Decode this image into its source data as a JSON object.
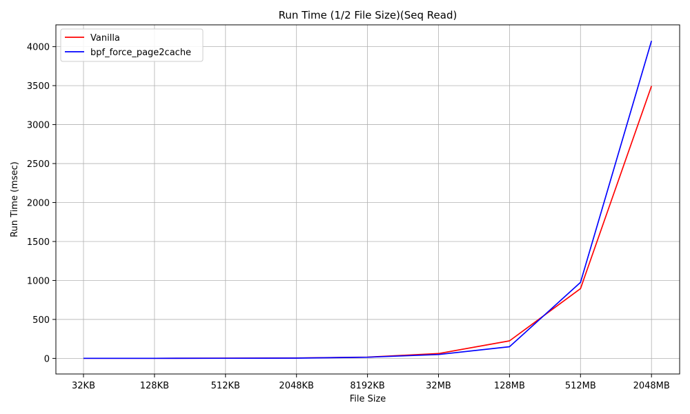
{
  "chart_data": {
    "type": "line",
    "title": "Run Time (1/2 File Size)(Seq Read)",
    "xlabel": "File Size",
    "ylabel": "Run Time (msec)",
    "categories": [
      "32KB",
      "128KB",
      "512KB",
      "2048KB",
      "8192KB",
      "32MB",
      "128MB",
      "512MB",
      "2048MB"
    ],
    "ylim": [
      -200,
      4280
    ],
    "yticks": [
      0,
      500,
      1000,
      1500,
      2000,
      2500,
      3000,
      3500,
      4000
    ],
    "grid": true,
    "legend_position": "upper-left",
    "series": [
      {
        "name": "Vanilla",
        "color": "#ff0000",
        "values": [
          1,
          1,
          3,
          5,
          16,
          62,
          225,
          895,
          3495
        ]
      },
      {
        "name": "bpf_force_page2cache",
        "color": "#0000ff",
        "values": [
          1,
          1,
          2,
          4,
          15,
          50,
          150,
          975,
          4075
        ]
      }
    ]
  }
}
